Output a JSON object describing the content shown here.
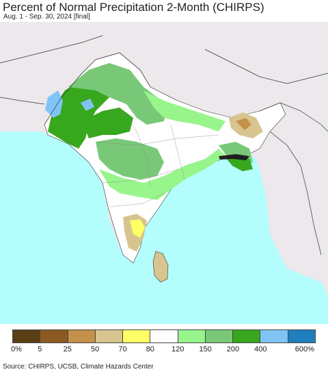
{
  "header": {
    "title": "Percent of Normal Precipitation 2-Month (CHIRPS)",
    "subtitle": "Aug. 1 - Sep. 30, 2024 [final]"
  },
  "legend": {
    "colors": [
      "#5a3e14",
      "#8b5a22",
      "#c4914a",
      "#d8c48e",
      "#ffff66",
      "#ffffff",
      "#98f58c",
      "#78c878",
      "#37a81e",
      "#80c4f6",
      "#1f7fbf"
    ],
    "labels": [
      "0%",
      "5",
      "25",
      "50",
      "70",
      "80",
      "120",
      "150",
      "200",
      "400",
      "600%"
    ]
  },
  "map": {
    "ocean_color": "#b4fdfd",
    "land_outside_color": "#ece8ec",
    "land_normal_color": "#ffffff"
  },
  "footer": {
    "source": "Source: CHIRPS, UCSB, Climate Hazards Center"
  }
}
